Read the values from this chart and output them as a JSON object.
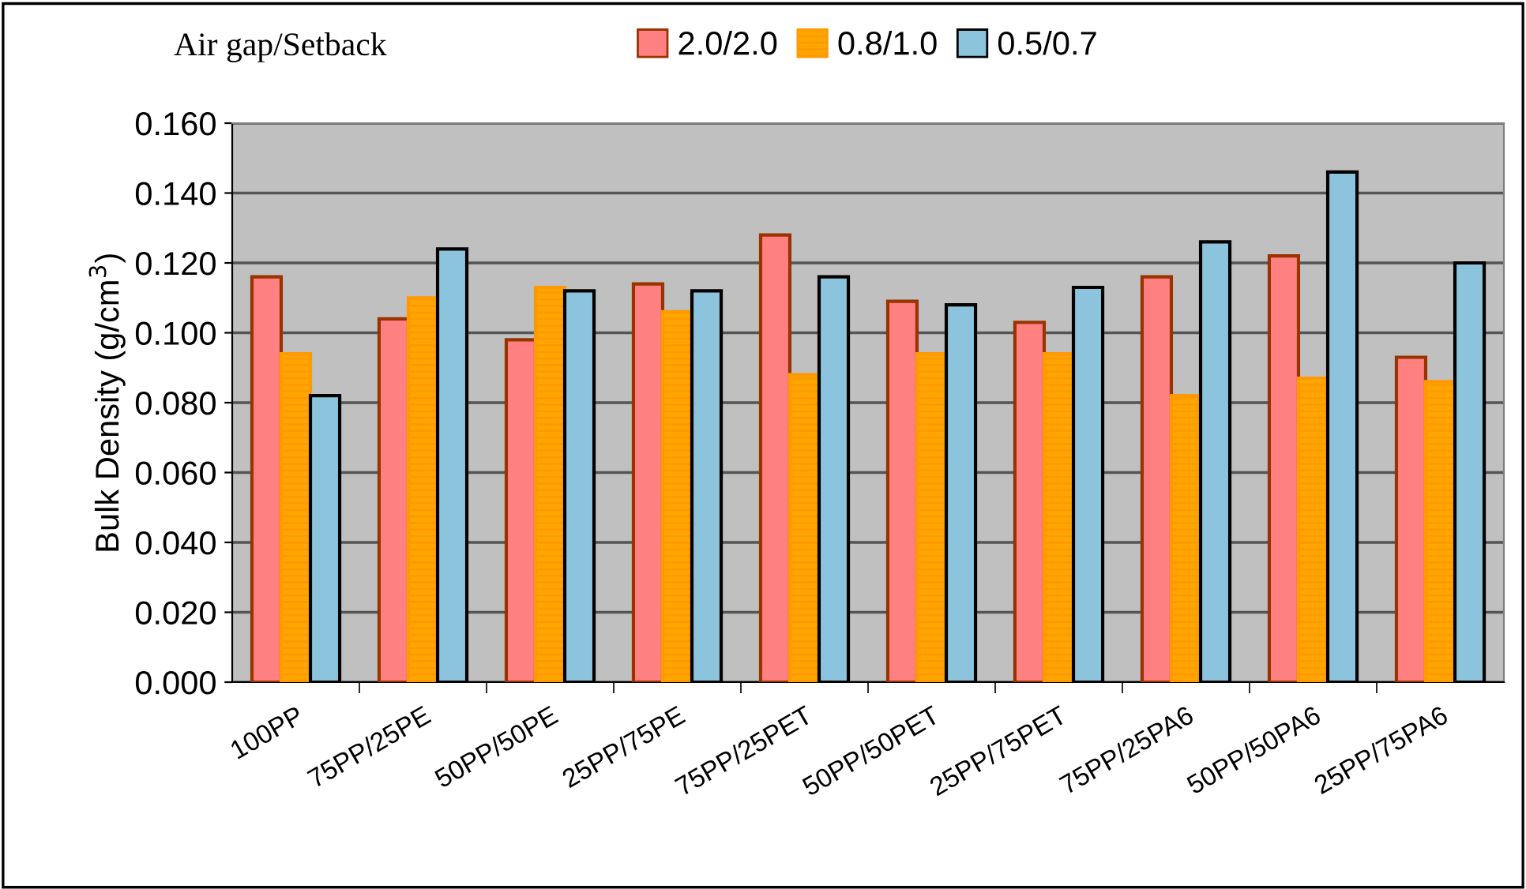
{
  "chart_data": {
    "type": "bar",
    "ylabel": "Bulk Density (g/cm$^{3}$)",
    "legend_title": "Air gap/Setback",
    "categories": [
      "100PP",
      "75PP/25PE",
      "50PP/50PE",
      "25PP/75PE",
      "75PP/25PET",
      "50PP/50PET",
      "25PP/75PET",
      "75PP/25PA6",
      "50PP/50PA6",
      "25PP/75PA6"
    ],
    "series": [
      {
        "name": "2.0/2.0",
        "color": "#ff8080",
        "values": [
          0.116,
          0.104,
          0.098,
          0.114,
          0.128,
          0.109,
          0.103,
          0.116,
          0.122,
          0.093
        ]
      },
      {
        "name": "0.8/1.0",
        "color": "#ffa500",
        "values": [
          0.094,
          0.11,
          0.113,
          0.106,
          0.088,
          0.094,
          0.094,
          0.082,
          0.087,
          0.086
        ]
      },
      {
        "name": "0.5/0.7",
        "color": "#8cc4de",
        "values": [
          0.082,
          0.124,
          0.112,
          0.112,
          0.116,
          0.108,
          0.113,
          0.126,
          0.146,
          0.12
        ]
      }
    ],
    "ylim": [
      0,
      0.16
    ],
    "yticks": [
      {
        "value": 0,
        "label": "0.000"
      },
      {
        "value": 0.02,
        "label": "0.020"
      },
      {
        "value": 0.04,
        "label": "0.040"
      },
      {
        "value": 0.06,
        "label": "0.060"
      },
      {
        "value": 0.08,
        "label": "0.080"
      },
      {
        "value": 0.1,
        "label": "0.100"
      },
      {
        "value": 0.12,
        "label": "0.120"
      },
      {
        "value": 0.14,
        "label": "0.140"
      },
      {
        "value": 0.16,
        "label": "0.160"
      }
    ],
    "grid": "y",
    "legend": "top"
  }
}
